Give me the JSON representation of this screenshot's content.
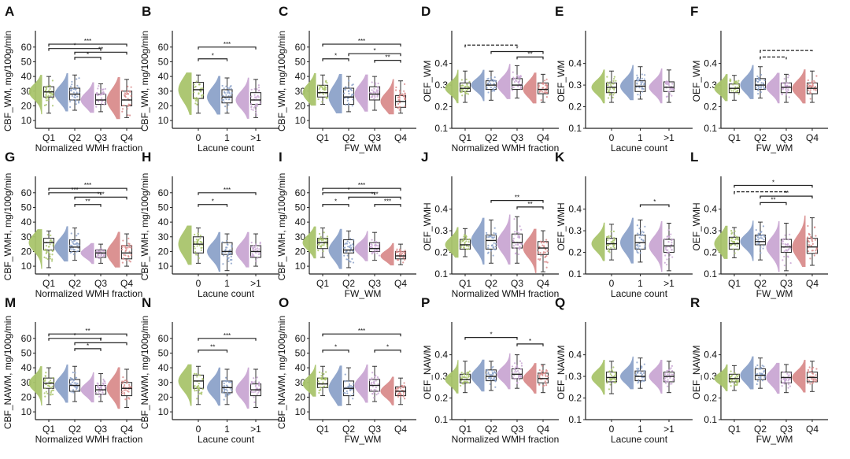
{
  "colors": [
    "#a9c46c",
    "#8ca2c9",
    "#c9a7d3",
    "#d98c8c"
  ],
  "chart_data": [
    {
      "label": "A",
      "type": "box",
      "ylabel": "CBF_WM, mg/100g/min",
      "xlabel": "Normalized WMH fraction",
      "categories": [
        "Q1",
        "Q2",
        "Q3",
        "Q4"
      ],
      "yticks": [
        10,
        20,
        30,
        40,
        50,
        60
      ],
      "ylim": [
        4.7,
        69
      ],
      "groups": [
        [
          15,
          26,
          29.5,
          33,
          40
        ],
        [
          17,
          24,
          28,
          32,
          41
        ],
        [
          16,
          21,
          24,
          28,
          35
        ],
        [
          12,
          20,
          24,
          30,
          38
        ]
      ],
      "brackets": [
        [
          1,
          4,
          62,
          "***",
          false
        ],
        [
          1,
          3,
          59,
          "*",
          false
        ],
        [
          2,
          4,
          56.5,
          "**",
          false
        ],
        [
          2,
          3,
          53,
          "*",
          false
        ]
      ]
    },
    {
      "label": "B",
      "type": "box",
      "ylabel": "CBF_WM, mg/100g/min",
      "xlabel": "Lacune count",
      "categories": [
        "0",
        "1",
        ">1"
      ],
      "yticks": [
        10,
        20,
        30,
        40,
        50,
        60
      ],
      "ylim": [
        4.7,
        69
      ],
      "groups": [
        [
          15,
          25,
          31,
          36,
          41
        ],
        [
          15,
          22,
          26,
          31,
          39
        ],
        [
          12,
          21,
          24,
          29,
          38
        ]
      ],
      "brackets": [
        [
          1,
          3,
          60,
          "***",
          false
        ],
        [
          1,
          2,
          52,
          "*",
          false
        ]
      ]
    },
    {
      "label": "C",
      "type": "box",
      "ylabel": "CBF_WM, mg/100g/min",
      "xlabel": "FW_WM",
      "categories": [
        "Q1",
        "Q2",
        "Q3",
        "Q4"
      ],
      "yticks": [
        10,
        20,
        30,
        40,
        50,
        60
      ],
      "ylim": [
        4.7,
        69
      ],
      "groups": [
        [
          21,
          26,
          29,
          34,
          41
        ],
        [
          16,
          21,
          26,
          32,
          40
        ],
        [
          17,
          24,
          28,
          33,
          40
        ],
        [
          15,
          19,
          23,
          27,
          37
        ]
      ],
      "brackets": [
        [
          1,
          4,
          62,
          "***",
          false
        ],
        [
          2,
          4,
          55.5,
          "*",
          false
        ],
        [
          1,
          2,
          52,
          "*",
          false
        ],
        [
          3,
          4,
          51,
          "**",
          false
        ]
      ]
    },
    {
      "label": "D",
      "type": "box",
      "ylabel": "OEF_WM",
      "xlabel": "Normalized WMH fraction",
      "categories": [
        "Q1",
        "Q2",
        "Q3",
        "Q4"
      ],
      "yticks": [
        0.1,
        0.2,
        0.3,
        0.4
      ],
      "ylim": [
        0.1,
        0.537
      ],
      "groups": [
        [
          0.22,
          0.27,
          0.285,
          0.31,
          0.365
        ],
        [
          0.23,
          0.28,
          0.3,
          0.32,
          0.365
        ],
        [
          0.24,
          0.28,
          0.3,
          0.33,
          0.39
        ],
        [
          0.22,
          0.26,
          0.28,
          0.31,
          0.35
        ]
      ],
      "brackets": [
        [
          1,
          3,
          0.485,
          "",
          true
        ],
        [
          2,
          4,
          0.455,
          "*",
          false
        ],
        [
          3,
          4,
          0.43,
          "**",
          false
        ]
      ]
    },
    {
      "label": "E",
      "type": "box",
      "ylabel": "OEF_WM",
      "xlabel": "Lacune count",
      "categories": [
        "0",
        "1",
        ">1"
      ],
      "yticks": [
        0.1,
        0.2,
        0.3,
        0.4
      ],
      "ylim": [
        0.1,
        0.537
      ],
      "groups": [
        [
          0.22,
          0.265,
          0.29,
          0.31,
          0.365
        ],
        [
          0.235,
          0.27,
          0.295,
          0.32,
          0.385
        ],
        [
          0.22,
          0.27,
          0.29,
          0.315,
          0.37
        ]
      ],
      "brackets": []
    },
    {
      "label": "F",
      "type": "box",
      "ylabel": "OEF_WM",
      "xlabel": "FW_WM",
      "categories": [
        "Q1",
        "Q2",
        "Q3",
        "Q4"
      ],
      "yticks": [
        0.1,
        0.2,
        0.3,
        0.4
      ],
      "ylim": [
        0.1,
        0.537
      ],
      "groups": [
        [
          0.23,
          0.265,
          0.285,
          0.305,
          0.345
        ],
        [
          0.24,
          0.28,
          0.3,
          0.33,
          0.385
        ],
        [
          0.22,
          0.265,
          0.29,
          0.31,
          0.35
        ],
        [
          0.22,
          0.26,
          0.285,
          0.31,
          0.365
        ]
      ],
      "brackets": [
        [
          2,
          4,
          0.46,
          "",
          true
        ],
        [
          2,
          3,
          0.43,
          "",
          true
        ]
      ]
    },
    {
      "label": "G",
      "type": "box",
      "ylabel": "CBF_WMH, mg/100g/min",
      "xlabel": "Normalized WMH fraction",
      "categories": [
        "Q1",
        "Q2",
        "Q3",
        "Q4"
      ],
      "yticks": [
        10,
        20,
        30,
        40,
        50,
        60
      ],
      "ylim": [
        4.7,
        69
      ],
      "groups": [
        [
          9,
          21,
          26,
          29,
          34
        ],
        [
          14,
          20,
          23,
          28,
          36
        ],
        [
          12,
          16,
          19,
          21,
          25
        ],
        [
          10,
          15,
          19,
          24,
          32
        ]
      ],
      "brackets": [
        [
          1,
          4,
          63,
          "***",
          false
        ],
        [
          1,
          3,
          60,
          "***",
          false
        ],
        [
          2,
          4,
          57,
          "***",
          false
        ],
        [
          2,
          3,
          52,
          "**",
          false
        ]
      ]
    },
    {
      "label": "H",
      "type": "box",
      "ylabel": "CBF_WMH, mg/100g/min",
      "xlabel": "Lacune count",
      "categories": [
        "0",
        "1",
        ">1"
      ],
      "yticks": [
        10,
        20,
        30,
        40,
        50,
        60
      ],
      "ylim": [
        4.7,
        69
      ],
      "groups": [
        [
          12,
          19,
          25,
          30,
          36
        ],
        [
          7,
          18,
          20,
          26,
          32
        ],
        [
          10,
          16,
          20,
          24,
          32
        ]
      ],
      "brackets": [
        [
          1,
          3,
          60,
          "***",
          false
        ],
        [
          1,
          2,
          52,
          "*",
          false
        ]
      ]
    },
    {
      "label": "I",
      "type": "box",
      "ylabel": "CBF_WMH, mg/100g/min",
      "xlabel": "FW_WM",
      "categories": [
        "Q1",
        "Q2",
        "Q3",
        "Q4"
      ],
      "yticks": [
        10,
        20,
        30,
        40,
        50,
        60
      ],
      "ylim": [
        4.7,
        69
      ],
      "groups": [
        [
          16,
          22,
          26,
          29,
          36
        ],
        [
          9,
          19,
          21,
          28,
          34
        ],
        [
          14,
          20,
          22,
          26,
          33
        ],
        [
          11,
          15,
          17,
          20,
          25
        ]
      ],
      "brackets": [
        [
          1,
          4,
          63,
          "***",
          false
        ],
        [
          1,
          3,
          60,
          "*",
          false
        ],
        [
          2,
          4,
          57,
          "***",
          false
        ],
        [
          1,
          2,
          52,
          "*",
          false
        ],
        [
          3,
          4,
          52,
          "***",
          false
        ]
      ]
    },
    {
      "label": "J",
      "type": "box",
      "ylabel": "OEF_WMH",
      "xlabel": "Normalized WMH fraction",
      "categories": [
        "Q1",
        "Q2",
        "Q3",
        "Q4"
      ],
      "yticks": [
        0.1,
        0.2,
        0.3,
        0.4
      ],
      "ylim": [
        0.1,
        0.537
      ],
      "groups": [
        [
          0.18,
          0.215,
          0.235,
          0.26,
          0.31
        ],
        [
          0.15,
          0.215,
          0.255,
          0.28,
          0.35
        ],
        [
          0.15,
          0.22,
          0.245,
          0.285,
          0.365
        ],
        [
          0.11,
          0.19,
          0.22,
          0.25,
          0.3
        ]
      ],
      "brackets": [
        [
          2,
          4,
          0.44,
          "**",
          false
        ],
        [
          3,
          4,
          0.41,
          "**",
          false
        ]
      ]
    },
    {
      "label": "K",
      "type": "box",
      "ylabel": "OEF_WMH",
      "xlabel": "Lacune count",
      "categories": [
        "0",
        "1",
        ">1"
      ],
      "yticks": [
        0.1,
        0.2,
        0.3,
        0.4
      ],
      "ylim": [
        0.1,
        0.537
      ],
      "groups": [
        [
          0.165,
          0.215,
          0.24,
          0.265,
          0.33
        ],
        [
          0.155,
          0.215,
          0.245,
          0.28,
          0.35
        ],
        [
          0.115,
          0.2,
          0.23,
          0.26,
          0.335
        ]
      ],
      "brackets": [
        [
          2,
          3,
          0.42,
          "*",
          false
        ]
      ]
    },
    {
      "label": "L",
      "type": "box",
      "ylabel": "OEF_WMH",
      "xlabel": "FW_WM",
      "categories": [
        "Q1",
        "Q2",
        "Q3",
        "Q4"
      ],
      "yticks": [
        0.1,
        0.2,
        0.3,
        0.4
      ],
      "ylim": [
        0.1,
        0.537
      ],
      "groups": [
        [
          0.175,
          0.215,
          0.24,
          0.27,
          0.315
        ],
        [
          0.165,
          0.235,
          0.25,
          0.28,
          0.34
        ],
        [
          0.115,
          0.2,
          0.225,
          0.26,
          0.335
        ],
        [
          0.14,
          0.195,
          0.225,
          0.265,
          0.36
        ]
      ],
      "brackets": [
        [
          1,
          4,
          0.51,
          "*",
          false
        ],
        [
          1,
          3,
          0.48,
          "",
          true
        ],
        [
          2,
          4,
          0.46,
          "**",
          false
        ],
        [
          2,
          3,
          0.43,
          "**",
          false
        ]
      ]
    },
    {
      "label": "M",
      "type": "box",
      "ylabel": "CBF_NAWM, mg/100g/min",
      "xlabel": "Normalized WMH fraction",
      "categories": [
        "Q1",
        "Q2",
        "Q3",
        "Q4"
      ],
      "yticks": [
        10,
        20,
        30,
        40,
        50,
        60
      ],
      "ylim": [
        4.7,
        69
      ],
      "groups": [
        [
          15,
          26,
          29.5,
          33,
          40
        ],
        [
          17,
          24,
          28,
          32,
          41
        ],
        [
          17,
          22,
          25,
          28,
          36
        ],
        [
          13,
          21,
          26,
          30,
          39
        ]
      ],
      "brackets": [
        [
          1,
          4,
          63,
          "**",
          false
        ],
        [
          1,
          3,
          60,
          "*",
          false
        ],
        [
          2,
          4,
          57,
          "*",
          false
        ],
        [
          2,
          3,
          53,
          "*",
          false
        ]
      ]
    },
    {
      "label": "N",
      "type": "box",
      "ylabel": "CBF_NAWM, mg/100g/min",
      "xlabel": "Lacune count",
      "categories": [
        "0",
        "1",
        ">1"
      ],
      "yticks": [
        10,
        20,
        30,
        40,
        50,
        60
      ],
      "ylim": [
        4.7,
        69
      ],
      "groups": [
        [
          15,
          26,
          31,
          35,
          41
        ],
        [
          15,
          23,
          26.5,
          31,
          39
        ],
        [
          13,
          21,
          25,
          29,
          39
        ]
      ],
      "brackets": [
        [
          1,
          3,
          60,
          "***",
          false
        ],
        [
          1,
          2,
          52,
          "**",
          false
        ]
      ]
    },
    {
      "label": "O",
      "type": "box",
      "ylabel": "CBF_NAWM, mg/100g/min",
      "xlabel": "FW_WM",
      "categories": [
        "Q1",
        "Q2",
        "Q3",
        "Q4"
      ],
      "yticks": [
        10,
        20,
        30,
        40,
        50,
        60
      ],
      "ylim": [
        4.7,
        69
      ],
      "groups": [
        [
          21,
          26.5,
          29,
          33,
          41
        ],
        [
          15,
          21,
          26,
          31,
          40
        ],
        [
          17,
          24,
          28,
          32,
          41
        ],
        [
          15,
          21,
          24,
          27,
          33
        ]
      ],
      "brackets": [
        [
          1,
          4,
          63,
          "***",
          false
        ],
        [
          1,
          2,
          52,
          "*",
          false
        ],
        [
          3,
          4,
          52,
          "*",
          false
        ]
      ]
    },
    {
      "label": "P",
      "type": "box",
      "ylabel": "OEF_NAWM",
      "xlabel": "Normalized WMH fraction",
      "categories": [
        "Q1",
        "Q2",
        "Q3",
        "Q4"
      ],
      "yticks": [
        0.1,
        0.2,
        0.3,
        0.4
      ],
      "ylim": [
        0.1,
        0.537
      ],
      "groups": [
        [
          0.225,
          0.27,
          0.285,
          0.31,
          0.37
        ],
        [
          0.235,
          0.28,
          0.3,
          0.33,
          0.37
        ],
        [
          0.245,
          0.29,
          0.31,
          0.335,
          0.4
        ],
        [
          0.225,
          0.27,
          0.29,
          0.315,
          0.355
        ]
      ],
      "brackets": [
        [
          1,
          3,
          0.48,
          "*",
          false
        ],
        [
          3,
          4,
          0.45,
          "*",
          false
        ]
      ]
    },
    {
      "label": "Q",
      "type": "box",
      "ylabel": "OEF_NAWM",
      "xlabel": "Lacune count",
      "categories": [
        "0",
        "1",
        ">1"
      ],
      "yticks": [
        0.1,
        0.2,
        0.3,
        0.4
      ],
      "ylim": [
        0.1,
        0.537
      ],
      "groups": [
        [
          0.22,
          0.275,
          0.295,
          0.32,
          0.37
        ],
        [
          0.245,
          0.28,
          0.3,
          0.325,
          0.385
        ],
        [
          0.225,
          0.275,
          0.3,
          0.32,
          0.37
        ]
      ],
      "brackets": []
    },
    {
      "label": "R",
      "type": "box",
      "ylabel": "OEF_NAWM",
      "xlabel": "FW_WM",
      "categories": [
        "Q1",
        "Q2",
        "Q3",
        "Q4"
      ],
      "yticks": [
        0.1,
        0.2,
        0.3,
        0.4
      ],
      "ylim": [
        0.1,
        0.537
      ],
      "groups": [
        [
          0.235,
          0.275,
          0.29,
          0.31,
          0.35
        ],
        [
          0.245,
          0.285,
          0.305,
          0.335,
          0.385
        ],
        [
          0.225,
          0.27,
          0.295,
          0.32,
          0.355
        ],
        [
          0.23,
          0.275,
          0.295,
          0.32,
          0.37
        ]
      ],
      "brackets": []
    }
  ]
}
